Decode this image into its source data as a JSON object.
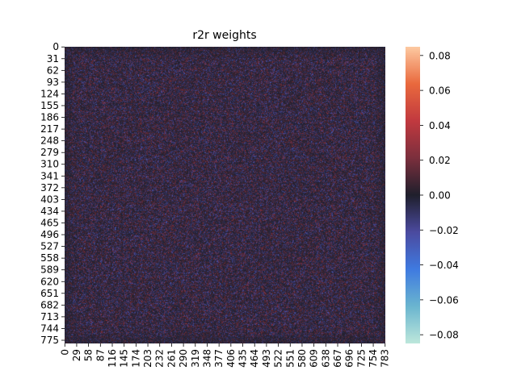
{
  "chart_data": {
    "type": "heatmap",
    "title": "r2r weights",
    "xlabel": "",
    "ylabel": "",
    "rows": 784,
    "cols": 784,
    "x_ticks": [
      "0",
      "29",
      "58",
      "87",
      "116",
      "145",
      "174",
      "203",
      "232",
      "261",
      "290",
      "319",
      "348",
      "377",
      "406",
      "435",
      "464",
      "493",
      "522",
      "551",
      "580",
      "609",
      "638",
      "667",
      "696",
      "725",
      "754",
      "783"
    ],
    "y_ticks": [
      "0",
      "31",
      "62",
      "93",
      "124",
      "155",
      "186",
      "217",
      "248",
      "279",
      "310",
      "341",
      "372",
      "403",
      "434",
      "465",
      "496",
      "527",
      "558",
      "589",
      "620",
      "651",
      "682",
      "713",
      "744",
      "775"
    ],
    "value_range": [
      -0.085,
      0.085
    ],
    "colorbar": {
      "colormap": "icefire",
      "ticks": [
        "0.08",
        "0.06",
        "0.04",
        "0.02",
        "0.00",
        "−0.02",
        "−0.04",
        "−0.06",
        "−0.08"
      ],
      "tick_values": [
        0.08,
        0.06,
        0.04,
        0.02,
        0.0,
        -0.02,
        -0.04,
        -0.06,
        -0.08
      ],
      "stops": [
        "#bde7db",
        "#6ab5cf",
        "#3f7ae0",
        "#4b4a9f",
        "#1f1f2c",
        "#7b2f3d",
        "#c1393f",
        "#e9693d",
        "#fdc9a1"
      ]
    },
    "grid": false,
    "legend": "colorbar-right"
  }
}
